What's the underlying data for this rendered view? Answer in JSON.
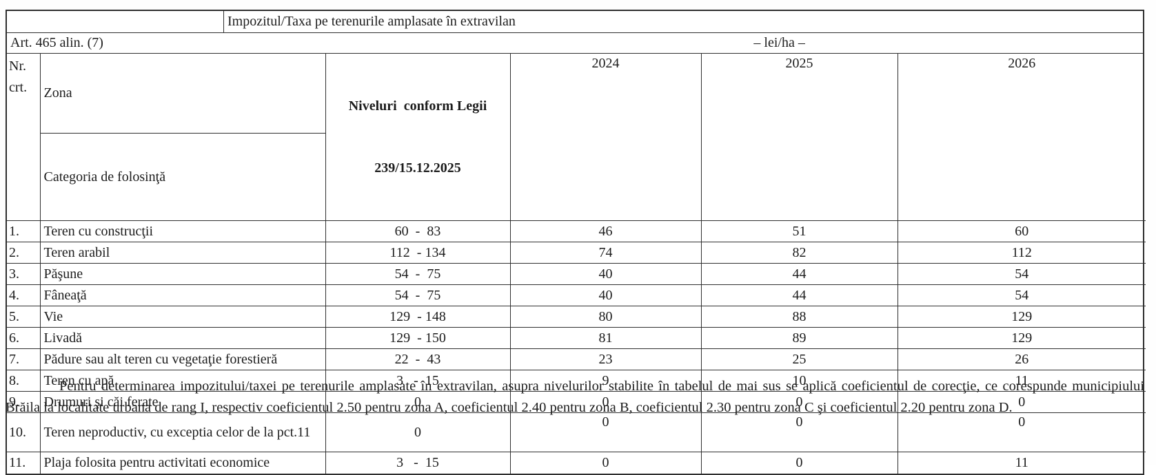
{
  "document": {
    "title": "Impozitul/Taxa pe terenurile amplasate în extravilan",
    "article": "Art. 465 alin. (7)",
    "unit": "– lei/ha –",
    "footnote": "Pentru determinarea impozitului/taxei pe terenurile amplasate în extravilan, asupra nivelurilor stabilite în tabelul de mai sus se aplică coeficientul de corecţie, ce corespunde municipiului Brăila la localitate urbana de rang I, respectiv coeficientul 2.50 pentru zona A, coeficientul 2.40 pentru zona B, coeficientul 2.30 pentru zona C şi coeficientul 2.20 pentru zona D."
  },
  "table": {
    "header": {
      "nr_line1": "Nr.",
      "nr_line2": "crt.",
      "zona": "Zona",
      "categoria": "Categoria de folosinţă",
      "niveluri_line1": "Niveluri  conform Legii",
      "niveluri_line2": "239/15.12.2025",
      "year_2024": "2024",
      "year_2025": "2025",
      "year_2026": "2026"
    },
    "rows": [
      {
        "nr": "1.",
        "categoria": "Teren cu construcţii",
        "niveluri": "60  -  83",
        "v2024": "46",
        "v2025": "51",
        "v2026": "60"
      },
      {
        "nr": "2.",
        "categoria": "Teren arabil",
        "niveluri": "112  - 134",
        "v2024": "74",
        "v2025": "82",
        "v2026": "112"
      },
      {
        "nr": "3.",
        "categoria": "Păşune",
        "niveluri": "54  -  75",
        "v2024": "40",
        "v2025": "44",
        "v2026": "54"
      },
      {
        "nr": "4.",
        "categoria": "Fâneaţă",
        "niveluri": "54  -  75",
        "v2024": "40",
        "v2025": "44",
        "v2026": "54"
      },
      {
        "nr": "5.",
        "categoria": "Vie",
        "niveluri": "129  - 148",
        "v2024": "80",
        "v2025": "88",
        "v2026": "129"
      },
      {
        "nr": "6.",
        "categoria": "Livadă",
        "niveluri": "129  - 150",
        "v2024": "81",
        "v2025": "89",
        "v2026": "129"
      },
      {
        "nr": "7.",
        "categoria": "Pădure sau alt teren cu vegetaţie forestieră",
        "niveluri": "22  -  43",
        "v2024": "23",
        "v2025": "25",
        "v2026": "26"
      },
      {
        "nr": "8.",
        "categoria": "Teren cu apă",
        "niveluri": "3   -  15",
        "v2024": "9",
        "v2025": "10",
        "v2026": "11"
      },
      {
        "nr": "9.",
        "categoria": "Drumuri şi căi ferate",
        "niveluri": "0",
        "v2024": "0",
        "v2025": "0",
        "v2026": "0"
      },
      {
        "nr": "10.",
        "categoria": "Teren neproductiv, cu exceptia celor de la pct.11",
        "niveluri": "0",
        "v2024": "0",
        "v2025": "0",
        "v2026": "0"
      },
      {
        "nr": "11.",
        "categoria": "Plaja folosita pentru activitati economice",
        "niveluri": "3   -  15",
        "v2024": "0",
        "v2025": "0",
        "v2026": "11"
      }
    ]
  }
}
